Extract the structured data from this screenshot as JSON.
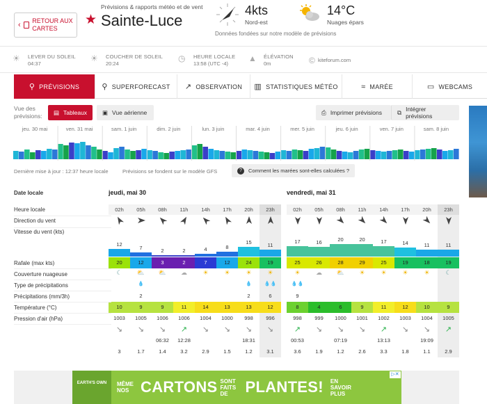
{
  "header": {
    "back_label": "RETOUR AUX CARTES",
    "subtitle": "Prévisions & rapports météo et de vent",
    "location": "Sainte-Luce",
    "wind_speed": "4kts",
    "wind_dir": "Nord-est",
    "temp": "14°C",
    "condition": "Nuages épars",
    "model_note": "Données fondées sur notre modèle de prévisions"
  },
  "info": {
    "sunrise_label": "LEVER DU SOLEIL",
    "sunrise": "04:37",
    "sunset_label": "COUCHER DE SOLEIL",
    "sunset": "20:24",
    "local_label": "HEURE LOCALE",
    "local": "13:58 (UTC -4)",
    "elev_label": "ÉLÉVATION",
    "elev": "0m",
    "site": "kiteforum.com"
  },
  "tabs": [
    "PRÉVISIONS",
    "SUPERFORECAST",
    "OBSERVATION",
    "STATISTIQUES MÉTÉO",
    "MARÉE",
    "WEBCAMS"
  ],
  "view": {
    "label": "Vue des prévisions:",
    "table": "Tableaux",
    "aerial": "Vue aérienne",
    "print": "Imprimer prévisions",
    "integrate": "Intégrer prévisions"
  },
  "strip_days": [
    "jeu. 30 mai",
    "ven. 31 mai",
    "sam. 1 juin",
    "dim. 2 juin",
    "lun. 3 juin",
    "mar. 4 juin",
    "mer. 5 juin",
    "jeu. 6 juin",
    "ven. 7 juin",
    "sam. 8 juin"
  ],
  "update": {
    "last": "Dernière mise à jour : 12:37 heure locale",
    "model": "Prévisions se fondent sur le modèle GFS",
    "how": "Comment les marées sont-elles calculées ?"
  },
  "table": {
    "row_labels": {
      "date": "Date locale",
      "hour": "Heure locale",
      "dir": "Direction du vent",
      "speed": "Vitesse du vent (kts)",
      "gust": "Rafale (max kts)",
      "cloud": "Couverture nuageuse",
      "ptype": "Type de précipitations",
      "precip": "Précipitations (mm/3h)",
      "temp": "Température (°C)",
      "pressure": "Pression d'air (hPa)"
    },
    "days": [
      "jeudi, mai 30",
      "vendredi, mai 31"
    ],
    "hours": [
      "02h",
      "05h",
      "08h",
      "11h",
      "14h",
      "17h",
      "20h",
      "23h",
      "02h",
      "05h",
      "08h",
      "11h",
      "14h",
      "17h",
      "20h",
      "23h"
    ],
    "wind_dir_deg": [
      330,
      90,
      315,
      30,
      315,
      330,
      0,
      0,
      180,
      180,
      135,
      135,
      135,
      180,
      135,
      180
    ],
    "speed": [
      12,
      7,
      2,
      2,
      4,
      8,
      15,
      11,
      17,
      16,
      20,
      20,
      17,
      14,
      11,
      11
    ],
    "gust": [
      20,
      12,
      3,
      2,
      7,
      12,
      24,
      19,
      25,
      26,
      28,
      29,
      25,
      19,
      18,
      19
    ],
    "precip": [
      "",
      "2",
      "",
      "",
      "",
      "",
      "2",
      "6",
      "9",
      "",
      "",
      "",
      "",
      "",
      "",
      ""
    ],
    "temp": [
      10,
      9,
      9,
      11,
      14,
      13,
      13,
      12,
      8,
      4,
      6,
      9,
      11,
      12,
      10,
      9
    ],
    "pressure": [
      1003,
      1005,
      1006,
      1006,
      1004,
      1000,
      998,
      996,
      998,
      999,
      1000,
      1001,
      1002,
      1003,
      1004,
      1005
    ],
    "tide_arrows": [
      "↘",
      "↘",
      "↘",
      "↗",
      "↘",
      "↘",
      "↘",
      "↘",
      "↗",
      "↘",
      "↘",
      "↘",
      "↗",
      "↘",
      "↘",
      "↗"
    ],
    "tide_times": [
      "",
      "",
      "06:32",
      "12:28",
      "",
      "",
      "18:31",
      "",
      "00:53",
      "",
      "07:19",
      "",
      "13:13",
      "",
      "19:09",
      ""
    ],
    "tide_vals": [
      "3",
      "1.7",
      "1.4",
      "3.2",
      "2.9",
      "1.5",
      "1.2",
      "3.1",
      "3.6",
      "1.9",
      "1.2",
      "2.6",
      "3.3",
      "1.8",
      "1.1",
      "2.9"
    ]
  },
  "colors": {
    "accent": "#c8102e"
  },
  "ad": {
    "logo": "EARTH'S OWN",
    "line1": "MÊME NOS",
    "big1": "CARTONS",
    "mid": "SONT FAITS DE",
    "big2": "PLANTES!",
    "cta": "EN SAVOIR PLUS"
  }
}
